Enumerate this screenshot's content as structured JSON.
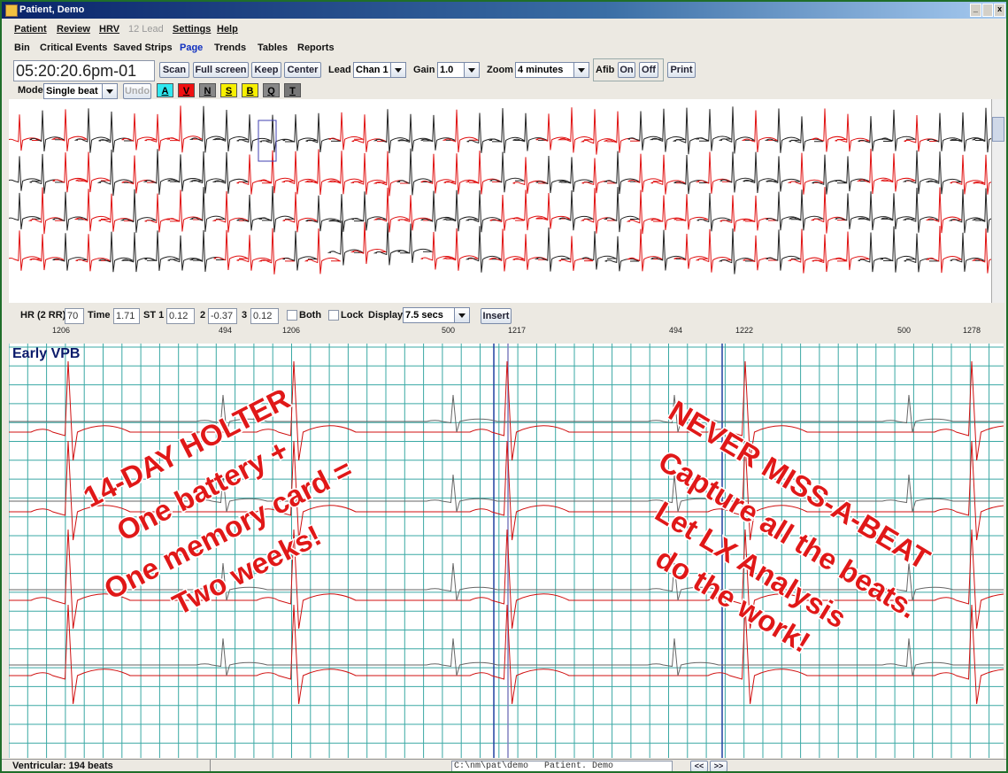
{
  "window": {
    "title": "Patient, Demo"
  },
  "menu": [
    "Patient",
    "Review",
    "HRV",
    "12 Lead",
    "Settings",
    "Help"
  ],
  "tabs": [
    "Bin",
    "Critical Events",
    "Saved Strips",
    "Page",
    "Trends",
    "Tables",
    "Reports"
  ],
  "toolbar": {
    "time": "05:20:20.6pm-01",
    "buttons": [
      "Scan",
      "Full screen",
      "Keep",
      "Center"
    ],
    "lead_label": "Lead",
    "lead": "Chan 1",
    "gain_label": "Gain",
    "gain": "1.0",
    "zoom_label": "Zoom",
    "zoom": "4 minutes",
    "afib": "Afib",
    "afib_buttons": [
      "On",
      "Off"
    ],
    "print": "Print"
  },
  "mode": {
    "label": "Mode",
    "value": "Single beat",
    "undo": "Undo",
    "beat_types": [
      "A",
      "V",
      "N",
      "S",
      "B",
      "Q",
      "T"
    ]
  },
  "measure": {
    "hr_label": "HR (2 RR)",
    "hr": 70,
    "time_label": "Time",
    "time": 1.71,
    "st1_label": "ST 1",
    "st1": 0.12,
    "st2_label": "2",
    "st2": -0.37,
    "st3_label": "3",
    "st3": 0.12,
    "both": "Both",
    "lock": "Lock",
    "display_label": "Display",
    "display": "7.5 secs",
    "insert": "Insert"
  },
  "rr_intervals": [
    1206,
    494,
    1206,
    500,
    1217,
    494,
    1222,
    500,
    1278
  ],
  "strip": {
    "label": "Early VPB"
  },
  "overlay": {
    "left": [
      "14-DAY HOLTER",
      "One battery +",
      "One memory card =",
      "Two weeks!"
    ],
    "right": [
      "NEVER MISS-A-BEAT",
      "Capture all the beats.",
      "Let LX Analysis",
      "do the work!"
    ]
  },
  "status": {
    "left": "Ventricular: 194 beats",
    "path": "C:\\nm\\pat\\demo   Patient. Demo",
    "prev": "<<",
    "next": ">>"
  }
}
